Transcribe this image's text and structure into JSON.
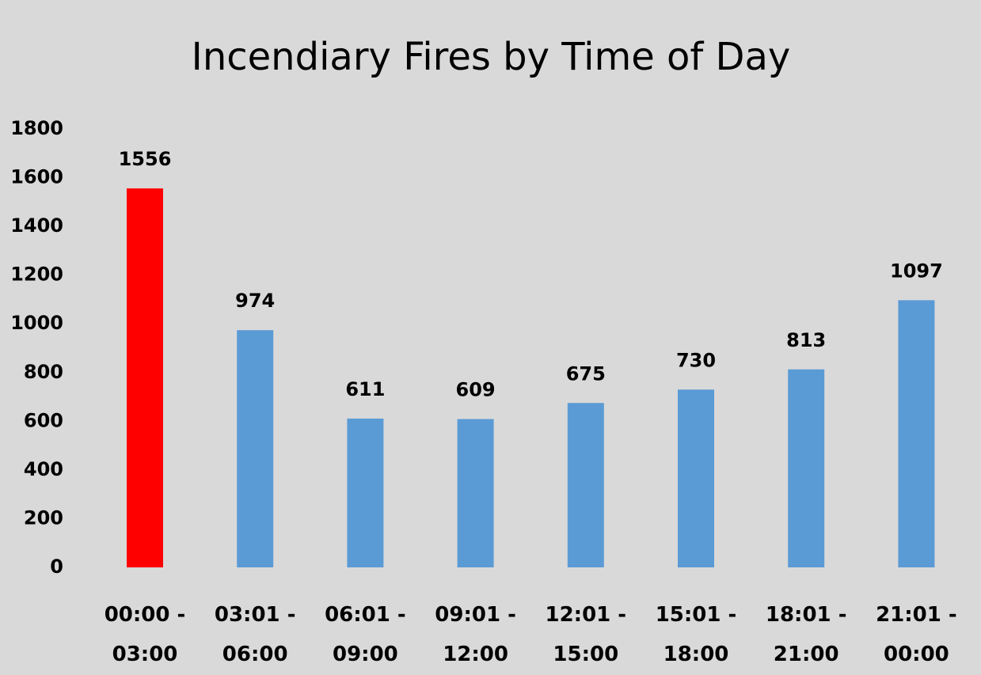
{
  "chart_data": {
    "type": "bar",
    "title": "Incendiary Fires by Time of Day",
    "categories": [
      "00:00 - 03:00",
      "03:01 - 06:00",
      "06:01 - 09:00",
      "09:01 - 12:00",
      "12:01 - 15:00",
      "15:01 - 18:00",
      "18:01 - 21:00",
      "21:01 - 00:00"
    ],
    "values": [
      1556,
      974,
      611,
      609,
      675,
      730,
      813,
      1097
    ],
    "colors": [
      "#ff0000",
      "#5b9bd5",
      "#5b9bd5",
      "#5b9bd5",
      "#5b9bd5",
      "#5b9bd5",
      "#5b9bd5",
      "#5b9bd5"
    ],
    "ylim": [
      0,
      1800
    ],
    "yticks": [
      0,
      200,
      400,
      600,
      800,
      1000,
      1200,
      1400,
      1600,
      1800
    ],
    "grid": false
  }
}
